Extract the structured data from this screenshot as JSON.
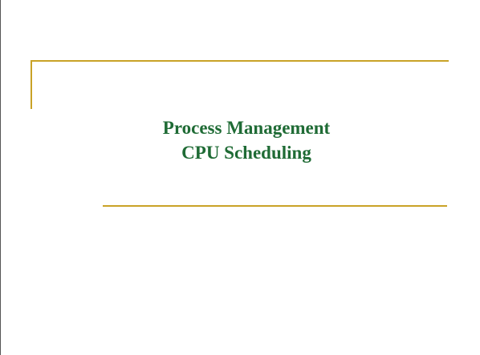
{
  "slide": {
    "title_line_1": "Process Management",
    "title_line_2": "CPU Scheduling"
  },
  "colors": {
    "title_text": "#1f6b35",
    "accent_rule": "#c9a227",
    "background": "#ffffff",
    "frame_border": "#555555"
  }
}
